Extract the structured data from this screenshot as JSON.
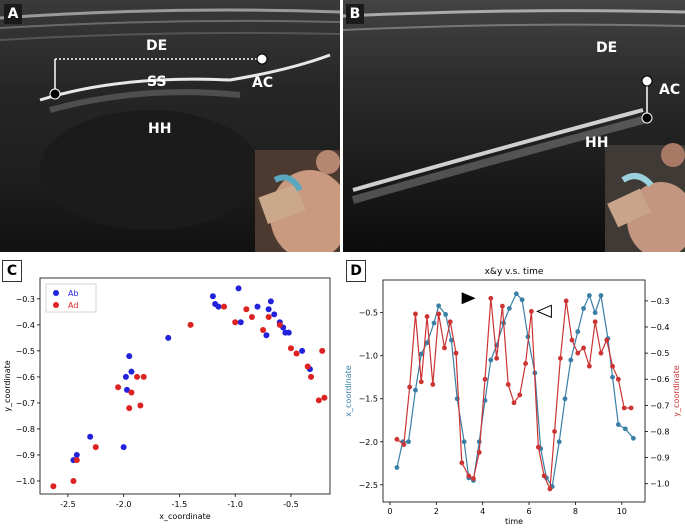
{
  "panels": {
    "A": {
      "letter": "A",
      "labels": {
        "de": "DE",
        "ss": "SS",
        "ac": "AC",
        "hh": "HH"
      }
    },
    "B": {
      "letter": "B",
      "labels": {
        "de": "DE",
        "ac": "AC",
        "hh": "HH"
      }
    },
    "C": {
      "letter": "C"
    },
    "D": {
      "letter": "D"
    }
  },
  "chart_data": [
    {
      "type": "scatter",
      "title": "",
      "xlabel": "x_coordinate",
      "ylabel": "y_coordinate",
      "xlim": [
        -2.75,
        -0.15
      ],
      "ylim": [
        -1.05,
        -0.22
      ],
      "xticks": [
        "-2.5",
        "-2.0",
        "-1.5",
        "-1.0",
        "-0.5"
      ],
      "yticks": [
        "−0.3",
        "−0.4",
        "−0.5",
        "−0.6",
        "−0.7",
        "−0.8",
        "−0.9",
        "−1.0"
      ],
      "legend": {
        "placement": "top-left"
      },
      "series": [
        {
          "name": "Ab",
          "color": "#2222dd",
          "x": [
            -2.45,
            -2.42,
            -2.3,
            -2.0,
            -1.98,
            -1.97,
            -1.95,
            -1.93,
            -1.6,
            -1.2,
            -1.18,
            -1.15,
            -0.97,
            -0.95,
            -0.8,
            -0.72,
            -0.7,
            -0.68,
            -0.65,
            -0.6,
            -0.57,
            -0.55,
            -0.52,
            -0.4,
            -0.33
          ],
          "y": [
            -0.92,
            -0.9,
            -0.83,
            -0.87,
            -0.6,
            -0.65,
            -0.52,
            -0.58,
            -0.45,
            -0.29,
            -0.32,
            -0.33,
            -0.26,
            -0.39,
            -0.33,
            -0.44,
            -0.34,
            -0.31,
            -0.36,
            -0.39,
            -0.41,
            -0.43,
            -0.43,
            -0.5,
            -0.57
          ]
        },
        {
          "name": "Ad",
          "color": "#dd2222",
          "x": [
            -2.63,
            -2.45,
            -2.42,
            -2.25,
            -2.05,
            -1.95,
            -1.93,
            -1.88,
            -1.85,
            -1.82,
            -1.4,
            -1.1,
            -1.0,
            -0.9,
            -0.85,
            -0.75,
            -0.7,
            -0.6,
            -0.5,
            -0.45,
            -0.35,
            -0.32,
            -0.25,
            -0.22,
            -0.2
          ],
          "y": [
            -1.02,
            -1.0,
            -0.92,
            -0.87,
            -0.64,
            -0.72,
            -0.66,
            -0.6,
            -0.71,
            -0.6,
            -0.4,
            -0.33,
            -0.39,
            -0.34,
            -0.37,
            -0.42,
            -0.37,
            -0.4,
            -0.49,
            -0.51,
            -0.56,
            -0.6,
            -0.69,
            -0.5,
            -0.68
          ]
        }
      ]
    },
    {
      "type": "line",
      "title": "x&y v.s. time",
      "xlabel": "time",
      "ylabel": "x_coordinate",
      "ylabel_right": "y_coordinate",
      "xlim": [
        -0.3,
        11.0
      ],
      "ylim": [
        -2.7,
        -0.12
      ],
      "ylim_right": [
        -1.07,
        -0.22
      ],
      "xticks": [
        "0",
        "2",
        "4",
        "6",
        "8",
        "10"
      ],
      "yticks_left": [
        "−0.5",
        "−1.0",
        "−1.5",
        "−2.0",
        "−2.5"
      ],
      "yticks_right": [
        "−0.3",
        "−0.4",
        "−0.5",
        "−0.6",
        "−0.7",
        "−0.8",
        "−0.9",
        "−1.0"
      ],
      "series": [
        {
          "axis": "left",
          "color": "#3a7fa6",
          "x": [
            0.3,
            0.55,
            0.8,
            1.1,
            1.35,
            1.6,
            1.9,
            2.1,
            2.4,
            2.65,
            2.9,
            3.2,
            3.4,
            3.6,
            3.85,
            4.1,
            4.35,
            4.6,
            4.9,
            5.15,
            5.45,
            5.7,
            5.95,
            6.25,
            6.5,
            6.75,
            7.0,
            7.3,
            7.55,
            7.8,
            8.1,
            8.35,
            8.6,
            8.85,
            9.1,
            9.4,
            9.6,
            9.85,
            10.15,
            10.5
          ],
          "y": [
            -2.3,
            -2.0,
            -2.0,
            -1.4,
            -0.98,
            -0.85,
            -0.62,
            -0.42,
            -0.52,
            -0.82,
            -1.5,
            -2.0,
            -2.42,
            -2.45,
            -2.0,
            -1.52,
            -1.05,
            -0.88,
            -0.62,
            -0.45,
            -0.28,
            -0.35,
            -0.78,
            -1.2,
            -2.08,
            -2.42,
            -2.52,
            -2.0,
            -1.5,
            -1.05,
            -0.72,
            -0.45,
            -0.3,
            -0.5,
            -0.3,
            -0.8,
            -1.25,
            -1.8,
            -1.85,
            -1.96
          ]
        },
        {
          "axis": "right",
          "color": "#cc3333",
          "x": [
            0.3,
            0.6,
            0.85,
            1.1,
            1.35,
            1.6,
            1.85,
            2.1,
            2.35,
            2.6,
            2.85,
            3.1,
            3.4,
            3.6,
            3.85,
            4.1,
            4.35,
            4.6,
            4.85,
            5.1,
            5.35,
            5.6,
            5.85,
            6.1,
            6.4,
            6.65,
            6.9,
            7.1,
            7.35,
            7.6,
            7.85,
            8.1,
            8.35,
            8.6,
            8.85,
            9.1,
            9.35,
            9.6,
            9.85,
            10.1,
            10.4
          ],
          "y": [
            -0.83,
            -0.85,
            -0.63,
            -0.35,
            -0.61,
            -0.36,
            -0.62,
            -0.35,
            -0.48,
            -0.38,
            -0.5,
            -0.92,
            -0.97,
            -0.98,
            -0.88,
            -0.6,
            -0.29,
            -0.52,
            -0.32,
            -0.62,
            -0.69,
            -0.66,
            -0.54,
            -0.34,
            -0.86,
            -0.97,
            -1.02,
            -0.8,
            -0.52,
            -0.3,
            -0.45,
            -0.5,
            -0.48,
            -0.55,
            -0.38,
            -0.5,
            -0.45,
            -0.55,
            -0.6,
            -0.71,
            -0.71
          ]
        }
      ]
    }
  ]
}
